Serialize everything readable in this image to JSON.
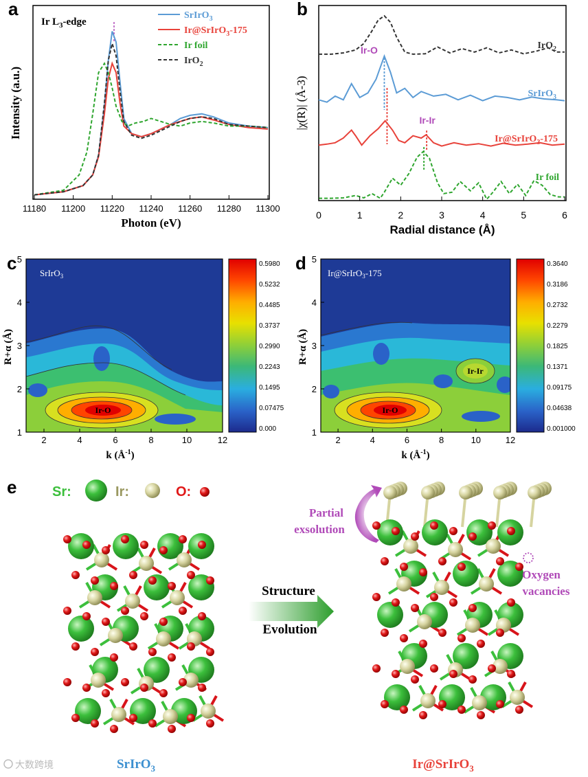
{
  "panels": {
    "a": {
      "letter": "a",
      "edge_label": "Ir L",
      "edge_sub": "3",
      "edge_suffix": "-edge"
    },
    "b": {
      "letter": "b"
    },
    "c": {
      "letter": "c"
    },
    "d": {
      "letter": "d"
    },
    "e": {
      "letter": "e"
    }
  },
  "colors": {
    "srirO3": "#5b9bd5",
    "ir_sriro3": "#e8423a",
    "ir_foil": "#2ea52e",
    "iro2": "#333333",
    "purple": "#b04ab8",
    "sr_green": "#3cbf3c",
    "ir_beige": "#d6d4a0",
    "o_red": "#e01818"
  },
  "chart_data": [
    {
      "id": "a",
      "type": "line",
      "title": "Ir L3-edge",
      "xlabel": "Photon (eV)",
      "ylabel": "Intensity (a.u.)",
      "xlim": [
        11180,
        11300
      ],
      "ylim": [
        0,
        1.25
      ],
      "xticks": [
        "11180",
        "11200",
        "11220",
        "11240",
        "11260",
        "11280",
        "11300"
      ],
      "legend": {
        "position": "top-right",
        "entries": [
          {
            "base": "SrIrO",
            "sub": "3",
            "after": ""
          },
          {
            "base": "Ir@SrIrO",
            "sub": "3",
            "after": "-175"
          },
          {
            "base": "Ir foil",
            "sub": "",
            "after": ""
          },
          {
            "base": "IrO",
            "sub": "2",
            "after": ""
          }
        ]
      },
      "series": [
        {
          "name": "SrIrO3",
          "style": "solid",
          "x": [
            11180,
            11195,
            11205,
            11210,
            11213,
            11216,
            11218,
            11220,
            11222,
            11224,
            11226,
            11230,
            11235,
            11240,
            11245,
            11250,
            11255,
            11260,
            11266,
            11272,
            11280,
            11290,
            11300
          ],
          "y": [
            0.02,
            0.04,
            0.08,
            0.15,
            0.28,
            0.6,
            0.9,
            1.09,
            1.02,
            0.76,
            0.52,
            0.42,
            0.4,
            0.42,
            0.45,
            0.48,
            0.52,
            0.54,
            0.55,
            0.53,
            0.49,
            0.47,
            0.46
          ]
        },
        {
          "name": "Ir@SrIrO3-175",
          "style": "solid",
          "x": [
            11180,
            11195,
            11205,
            11210,
            11213,
            11216,
            11218,
            11220,
            11222,
            11224,
            11226,
            11230,
            11235,
            11240,
            11245,
            11250,
            11255,
            11260,
            11266,
            11272,
            11280,
            11290,
            11300
          ],
          "y": [
            0.02,
            0.04,
            0.08,
            0.15,
            0.27,
            0.55,
            0.78,
            0.88,
            0.82,
            0.62,
            0.47,
            0.42,
            0.4,
            0.42,
            0.45,
            0.48,
            0.5,
            0.52,
            0.53,
            0.51,
            0.48,
            0.46,
            0.45
          ]
        },
        {
          "name": "Ir foil",
          "style": "dashed",
          "x": [
            11180,
            11195,
            11203,
            11207,
            11210,
            11213,
            11216,
            11218,
            11220,
            11222,
            11225,
            11228,
            11232,
            11236,
            11240,
            11245,
            11250,
            11255,
            11260,
            11266,
            11272,
            11280,
            11290,
            11300
          ],
          "y": [
            0.02,
            0.05,
            0.15,
            0.3,
            0.55,
            0.82,
            0.88,
            0.82,
            0.72,
            0.6,
            0.5,
            0.47,
            0.49,
            0.5,
            0.52,
            0.5,
            0.48,
            0.47,
            0.49,
            0.5,
            0.49,
            0.47,
            0.47,
            0.46
          ]
        },
        {
          "name": "IrO2",
          "style": "dashed",
          "x": [
            11180,
            11195,
            11205,
            11210,
            11213,
            11216,
            11218,
            11220,
            11222,
            11224,
            11226,
            11230,
            11235,
            11240,
            11245,
            11250,
            11255,
            11260,
            11266,
            11272,
            11280,
            11290,
            11300
          ],
          "y": [
            0.02,
            0.04,
            0.08,
            0.15,
            0.28,
            0.62,
            0.9,
            1.01,
            0.93,
            0.7,
            0.5,
            0.41,
            0.39,
            0.41,
            0.44,
            0.47,
            0.5,
            0.52,
            0.53,
            0.52,
            0.48,
            0.47,
            0.46
          ]
        }
      ]
    },
    {
      "id": "b",
      "type": "line",
      "xlabel": "Radial distance (Å)",
      "ylabel": "|χ(R)| (Å-3)",
      "xlim": [
        0,
        6
      ],
      "xticks": [
        "0",
        "1",
        "2",
        "3",
        "4",
        "5",
        "6"
      ],
      "annotations": [
        {
          "text": "Ir-O",
          "x": 1.6
        },
        {
          "text": "Ir-Ir",
          "x": 2.6
        }
      ],
      "series_labels": [
        {
          "base": "IrO",
          "sub": "2",
          "after": ""
        },
        {
          "base": "SrIrO",
          "sub": "3",
          "after": ""
        },
        {
          "base": "Ir@SrIrO",
          "sub": "3",
          "after": "-175"
        },
        {
          "base": "Ir foil",
          "sub": "",
          "after": ""
        }
      ],
      "series": [
        {
          "name": "IrO2",
          "style": "dashed",
          "offset": 3.3,
          "x": [
            0,
            0.3,
            0.6,
            0.9,
            1.1,
            1.3,
            1.45,
            1.6,
            1.75,
            1.9,
            2.1,
            2.3,
            2.6,
            2.9,
            3.2,
            3.5,
            3.8,
            4.1,
            4.4,
            4.7,
            5.0,
            5.3,
            5.6,
            5.8,
            6.0
          ],
          "y": [
            0.05,
            0.05,
            0.08,
            0.15,
            0.3,
            0.6,
            0.85,
            0.95,
            0.8,
            0.45,
            0.1,
            0.05,
            0.06,
            0.22,
            0.08,
            0.18,
            0.1,
            0.2,
            0.08,
            0.15,
            0.06,
            0.12,
            0.2,
            0.1,
            0.1
          ]
        },
        {
          "name": "SrIrO3",
          "style": "solid",
          "offset": 2.2,
          "x": [
            0,
            0.2,
            0.4,
            0.6,
            0.8,
            1.0,
            1.2,
            1.4,
            1.6,
            1.75,
            1.9,
            2.1,
            2.3,
            2.5,
            2.8,
            3.1,
            3.4,
            3.7,
            4.0,
            4.3,
            4.6,
            4.9,
            5.2,
            5.5,
            5.8,
            6.0
          ],
          "y": [
            0.1,
            0.05,
            0.18,
            0.1,
            0.45,
            0.15,
            0.25,
            0.55,
            1.05,
            0.7,
            0.25,
            0.35,
            0.15,
            0.28,
            0.18,
            0.22,
            0.1,
            0.2,
            0.08,
            0.18,
            0.15,
            0.1,
            0.16,
            0.12,
            0.1,
            0.08
          ]
        },
        {
          "name": "Ir@SrIrO3-175",
          "style": "solid",
          "offset": 1.15,
          "x": [
            0,
            0.2,
            0.4,
            0.6,
            0.8,
            0.9,
            1.05,
            1.25,
            1.45,
            1.62,
            1.8,
            1.95,
            2.1,
            2.3,
            2.5,
            2.62,
            2.8,
            3.0,
            3.3,
            3.6,
            3.9,
            4.2,
            4.5,
            4.8,
            5.1,
            5.4,
            5.7,
            6.0
          ],
          "y": [
            0.1,
            0.12,
            0.15,
            0.25,
            0.42,
            0.3,
            0.1,
            0.3,
            0.45,
            0.62,
            0.42,
            0.2,
            0.15,
            0.3,
            0.25,
            0.32,
            0.15,
            0.08,
            0.15,
            0.1,
            0.13,
            0.08,
            0.14,
            0.1,
            0.12,
            0.15,
            0.1,
            0.12
          ]
        },
        {
          "name": "Ir foil",
          "style": "dashed",
          "offset": 0,
          "x": [
            0,
            0.3,
            0.6,
            0.9,
            1.1,
            1.3,
            1.5,
            1.6,
            1.8,
            2.0,
            2.2,
            2.4,
            2.55,
            2.7,
            2.9,
            3.05,
            3.25,
            3.45,
            3.7,
            3.9,
            4.1,
            4.25,
            4.45,
            4.65,
            4.85,
            5.05,
            5.25,
            5.45,
            5.65,
            5.85,
            6.0
          ],
          "y": [
            0.02,
            0.02,
            0.03,
            0.08,
            0.03,
            0.12,
            0.02,
            0.15,
            0.45,
            0.3,
            0.55,
            0.9,
            1.02,
            0.88,
            0.35,
            0.12,
            0.15,
            0.38,
            0.18,
            0.35,
            0.0,
            0.15,
            0.38,
            0.12,
            0.32,
            0.08,
            0.4,
            0.3,
            0.1,
            0.05,
            0.05
          ]
        }
      ]
    },
    {
      "id": "c",
      "type": "heatmap",
      "title": "SrIrO3",
      "title_base": "SrIrO",
      "title_sub": "3",
      "xlabel": "k (Å-1)",
      "ylabel": "R+α (Å)",
      "xlim": [
        1,
        12
      ],
      "ylim": [
        1,
        5
      ],
      "xticks": [
        "2",
        "4",
        "6",
        "8",
        "10",
        "12"
      ],
      "yticks": [
        "1",
        "2",
        "3",
        "4",
        "5"
      ],
      "colorbar_ticks": [
        "0.5980",
        "0.5232",
        "0.4485",
        "0.3737",
        "0.2990",
        "0.2243",
        "0.1495",
        "0.07475",
        "0.000"
      ],
      "label": "Ir-O"
    },
    {
      "id": "d",
      "type": "heatmap",
      "title": "Ir@SrIrO3-175",
      "title_base": "Ir@SrIrO",
      "title_sub": "3",
      "title_after": "-175",
      "xlabel": "k (Å-1)",
      "ylabel": "R+α (Å)",
      "xlim": [
        1,
        12
      ],
      "ylim": [
        1,
        5
      ],
      "xticks": [
        "2",
        "4",
        "6",
        "8",
        "10",
        "12"
      ],
      "yticks": [
        "1",
        "2",
        "3",
        "4",
        "5"
      ],
      "colorbar_ticks": [
        "0.3640",
        "0.3186",
        "0.2732",
        "0.2279",
        "0.1825",
        "0.1371",
        "0.09175",
        "0.04638",
        "0.001000"
      ],
      "label": "Ir-O",
      "label2": "Ir-Ir"
    }
  ],
  "legend_e": {
    "sr": "Sr:",
    "ir": "Ir:",
    "o": "O:"
  },
  "arrow": {
    "line1": "Structure",
    "line2": "Evolution"
  },
  "structure_left": {
    "base": "SrIrO",
    "sub": "3"
  },
  "structure_right": {
    "base": "Ir@SrIrO",
    "sub": "3"
  },
  "partial": {
    "line1": "Partial",
    "line2": "exsolution"
  },
  "vacancy": {
    "line1": "Oxygen",
    "line2": "vacancies"
  },
  "watermark": "大数跨境"
}
